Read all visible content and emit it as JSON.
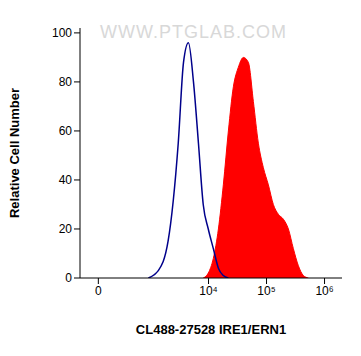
{
  "chart_data": {
    "type": "histogram",
    "xlabel": "CL488-27528 IRE1/ERN1",
    "ylabel": "Relative Cell Number",
    "annotations": [
      "WWW.PTGLAB.COM"
    ],
    "log": "x",
    "xlim": [
      -200,
      2000000
    ],
    "xticks": [
      0,
      {
        "value": 10000,
        "label": "10⁴"
      },
      {
        "value": 100000,
        "label": "10⁵"
      },
      {
        "value": 1000000,
        "label": "10⁶"
      }
    ],
    "ylim": [
      0,
      102
    ],
    "yticks": [
      0,
      20,
      40,
      60,
      80,
      100
    ],
    "x": [
      900,
      1350,
      2000,
      3000,
      3700,
      4500,
      5500,
      6700,
      8100,
      9900,
      12100,
      14800,
      18000,
      22000,
      26800,
      32700,
      39900,
      48600,
      59300,
      72300,
      88200,
      107600,
      131000,
      160000,
      195000,
      238000,
      290000,
      354000,
      432000,
      527000
    ],
    "series": [
      {
        "type": "line",
        "color": "#00008b",
        "values": [
          0,
          3,
          15,
          55,
          88,
          96,
          80,
          55,
          30,
          20,
          12,
          4,
          1,
          0,
          null,
          null,
          null,
          null,
          null,
          null,
          null,
          null,
          null,
          null,
          null,
          null,
          null,
          null,
          null,
          null
        ]
      },
      {
        "type": "area",
        "color": "#ff0000",
        "values": [
          null,
          null,
          null,
          null,
          null,
          null,
          null,
          null,
          0,
          2,
          8,
          20,
          38,
          60,
          78,
          86,
          90,
          88,
          72,
          55,
          45,
          38,
          30,
          26,
          24,
          20,
          12,
          5,
          1,
          0
        ]
      }
    ]
  }
}
